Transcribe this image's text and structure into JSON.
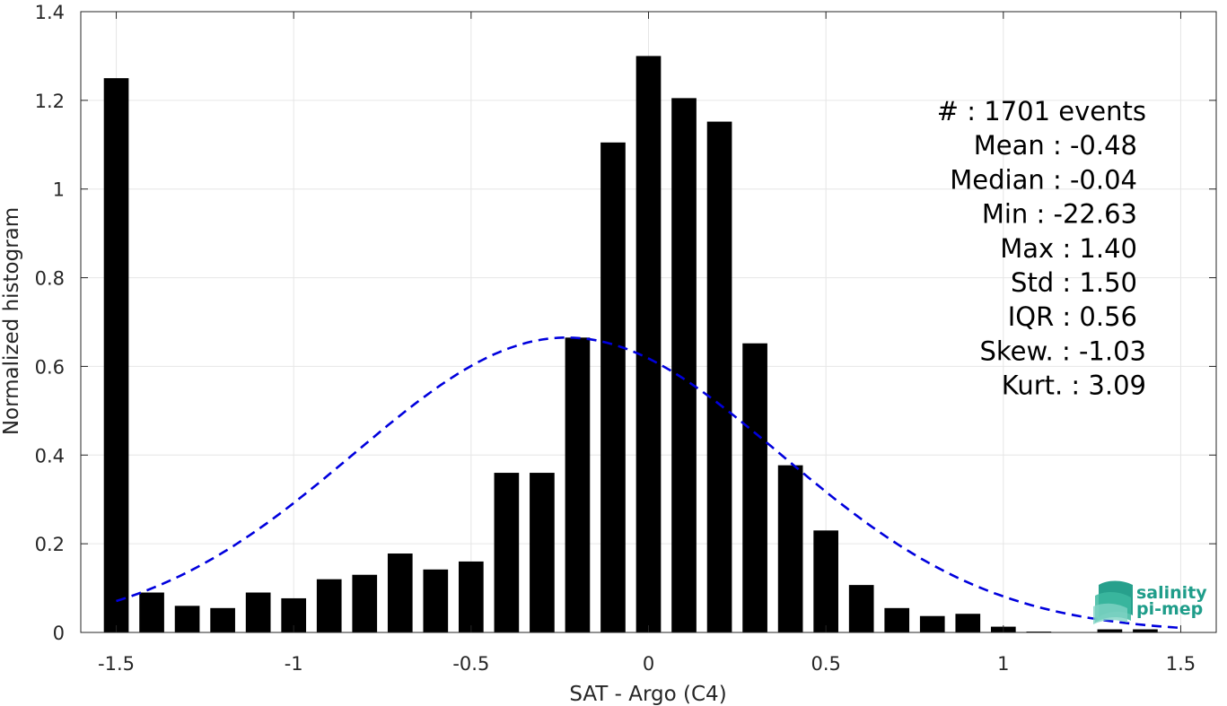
{
  "chart_data": {
    "type": "bar",
    "xlabel": "SAT - Argo (C4)",
    "ylabel": "Normalized histogram",
    "xlim": [
      -1.6,
      1.6
    ],
    "ylim": [
      0,
      1.4
    ],
    "x_ticks": [
      -1.5,
      -1,
      -0.5,
      0,
      0.5,
      1,
      1.5
    ],
    "x_tick_labels": [
      "-1.5",
      "-1",
      "-0.5",
      "0",
      "0.5",
      "1",
      "1.5"
    ],
    "y_ticks": [
      0,
      0.2,
      0.4,
      0.6,
      0.8,
      1,
      1.2,
      1.4
    ],
    "y_tick_labels": [
      "0",
      "0.2",
      "0.4",
      "0.6",
      "0.8",
      "1",
      "1.2",
      "1.4"
    ],
    "grid": true,
    "bar_width": 0.07,
    "bin_centers": [
      -1.5,
      -1.4,
      -1.3,
      -1.2,
      -1.1,
      -1.0,
      -0.9,
      -0.8,
      -0.7,
      -0.6,
      -0.5,
      -0.4,
      -0.3,
      -0.2,
      -0.1,
      0.0,
      0.1,
      0.2,
      0.3,
      0.4,
      0.5,
      0.6,
      0.7,
      0.8,
      0.9,
      1.0,
      1.1,
      1.2,
      1.3,
      1.4
    ],
    "values": [
      1.25,
      0.09,
      0.06,
      0.055,
      0.09,
      0.077,
      0.12,
      0.13,
      0.178,
      0.142,
      0.16,
      0.36,
      0.36,
      0.665,
      1.105,
      1.3,
      1.205,
      1.152,
      0.652,
      0.377,
      0.23,
      0.107,
      0.055,
      0.037,
      0.042,
      0.013,
      0.002,
      0.001,
      0.007,
      0.007
    ],
    "fit_curve": {
      "type": "gaussian",
      "color": "#0000dd",
      "style": "dashed",
      "mean": -0.23,
      "std": 0.6,
      "peak": 0.665,
      "x_range": [
        -1.5,
        1.5
      ]
    },
    "stats": [
      {
        "label": "#",
        "value": ": 1701 events"
      },
      {
        "label": "Mean",
        "value": ": -0.48"
      },
      {
        "label": "Median",
        "value": ": -0.04"
      },
      {
        "label": "Min",
        "value": ": -22.63"
      },
      {
        "label": "Max",
        "value": ": 1.40"
      },
      {
        "label": "Std",
        "value": ": 1.50"
      },
      {
        "label": "IQR",
        "value": ": 0.56"
      },
      {
        "label": "Skew.",
        "value": ": -1.03"
      },
      {
        "label": "Kurt.",
        "value": ": 3.09"
      }
    ]
  },
  "logo": {
    "line1": "salinity",
    "line2": "pi-mep",
    "color": "#1f9d8a"
  }
}
